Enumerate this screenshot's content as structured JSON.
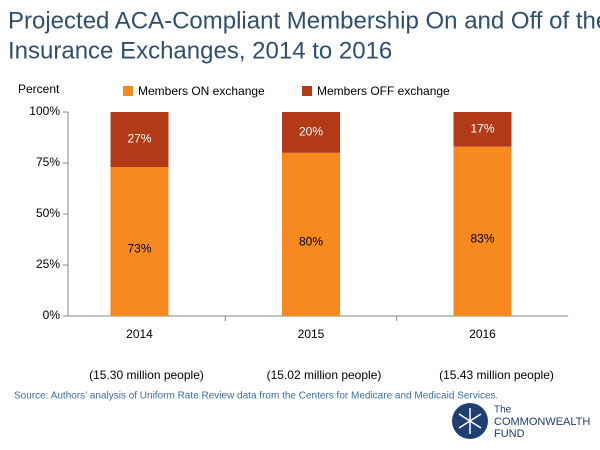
{
  "chart_data": {
    "type": "stacked_bar",
    "title": [
      "Projected ACA-Compliant Membership On and Off of the Health",
      "Insurance Exchanges, 2014 to 2016"
    ],
    "y_label": "Percent",
    "categories": [
      "2014",
      "2015",
      "2016"
    ],
    "category_notes": [
      "(15.30 million people)",
      "(15.02 million people)",
      "(15.43 million people)"
    ],
    "series": [
      {
        "name": "Members ON exchange",
        "color": "#f7891f",
        "values": [
          73,
          80,
          83
        ],
        "value_labels": [
          "73%",
          "80%",
          "83%"
        ]
      },
      {
        "name": "Members OFF exchange",
        "color": "#b23a17",
        "values": [
          27,
          20,
          17
        ],
        "value_labels": [
          "27%",
          "20%",
          "17%"
        ]
      }
    ],
    "ylim": [
      0,
      100
    ],
    "yticks": [
      {
        "value": 0,
        "label": "0%"
      },
      {
        "value": 25,
        "label": "25%"
      },
      {
        "value": 50,
        "label": "50%"
      },
      {
        "value": 75,
        "label": "75%"
      },
      {
        "value": 100,
        "label": "100%"
      }
    ],
    "grid": false,
    "legend": "top",
    "source": "Source: Authors’ analysis of Uniform Rate Review data from the Centers for Medicare and Medicaid Services."
  },
  "logo": {
    "lines": [
      "The",
      "COMMONWEALTH",
      "FUND"
    ]
  }
}
